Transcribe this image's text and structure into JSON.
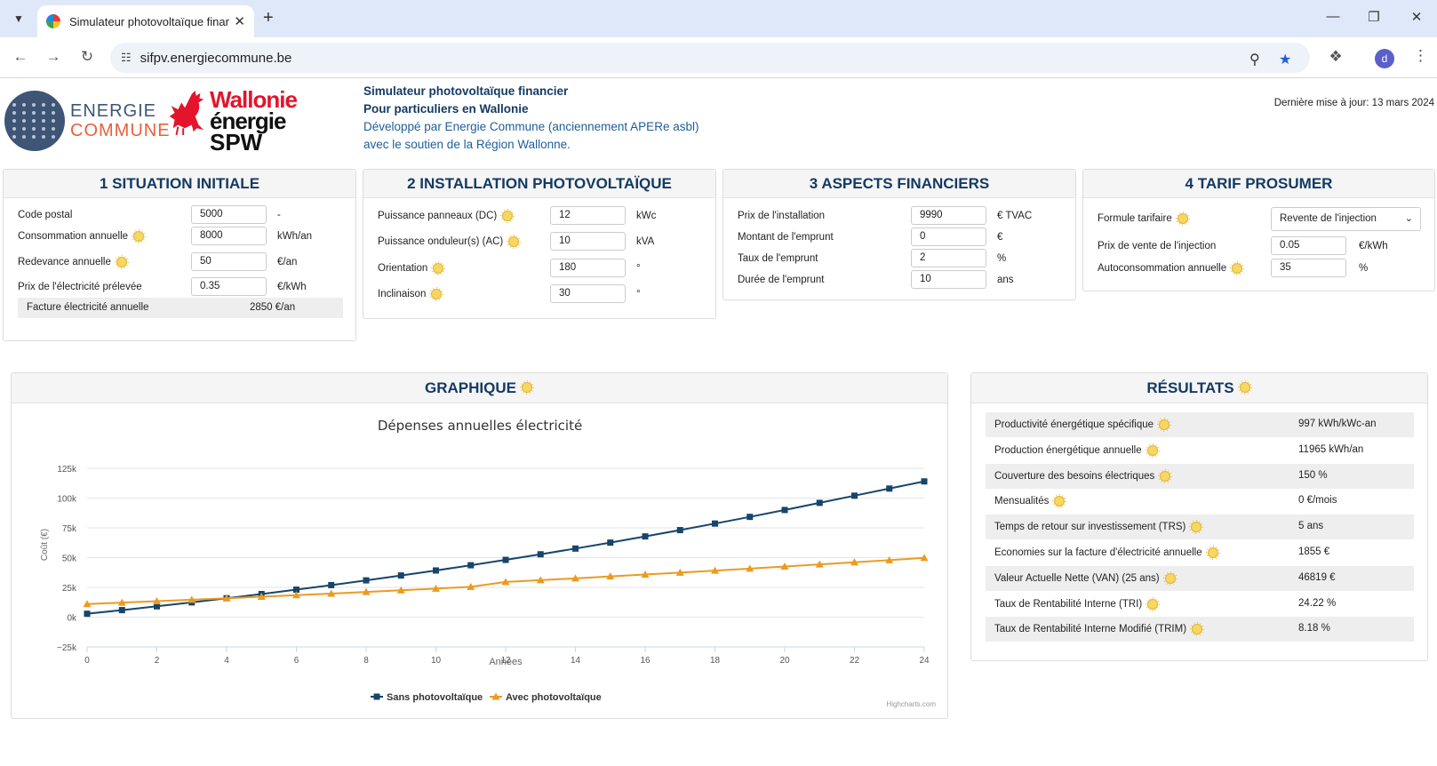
{
  "browser": {
    "tab_title": "Simulateur photovoltaïque financ",
    "url": "sifpv.energiecommune.be",
    "avatar_letter": "d"
  },
  "header": {
    "logo_ec_line1": "ENERGIE",
    "logo_ec_line2": "COMMUNE",
    "logo_wal_line1": "Wallonie",
    "logo_wal_line2": "énergie",
    "logo_wal_line3": "SPW",
    "title": "Simulateur photovoltaïque financier",
    "subtitle": "Pour particuliers en Wallonie",
    "dev_line": "Développé par Energie Commune (anciennement APERe asbl)",
    "support_line": "avec le soutien de la Région Wallonne.",
    "updated": "Dernière mise à jour: 13 mars 2024"
  },
  "situation": {
    "title": "1 SITUATION INITIALE",
    "rows": [
      {
        "label": "Code postal",
        "value": "5000",
        "unit": "-"
      },
      {
        "label": "Consommation annuelle",
        "value": "8000",
        "unit": "kWh/an"
      },
      {
        "label": "Redevance annuelle",
        "value": "50",
        "unit": "€/an"
      },
      {
        "label": "Prix de l'électricité prélevée",
        "value": "0.35",
        "unit": "€/kWh"
      }
    ],
    "facture_label": "Facture électricité annuelle",
    "facture_value": "2850 €/an"
  },
  "installation": {
    "title": "2 INSTALLATION PHOTOVOLTAÏQUE",
    "rows": [
      {
        "label": "Puissance panneaux (DC)",
        "value": "12",
        "unit": "kWc"
      },
      {
        "label": "Puissance onduleur(s) (AC)",
        "value": "10",
        "unit": "kVA"
      },
      {
        "label": "Orientation",
        "value": "180",
        "unit": "°"
      },
      {
        "label": "Inclinaison",
        "value": "30",
        "unit": "°"
      }
    ]
  },
  "financier": {
    "title": "3 ASPECTS FINANCIERS",
    "rows": [
      {
        "label": "Prix de l'installation",
        "value": "9990",
        "unit": "€ TVAC"
      },
      {
        "label": "Montant de l'emprunt",
        "value": "0",
        "unit": "€"
      },
      {
        "label": "Taux de l'emprunt",
        "value": "2",
        "unit": "%"
      },
      {
        "label": "Durée de l'emprunt",
        "value": "10",
        "unit": "ans"
      }
    ]
  },
  "tarif": {
    "title": "4 TARIF PROSUMER",
    "formule_label": "Formule tarifaire",
    "formule_value": "Revente de l'injection",
    "rows": [
      {
        "label": "Prix de vente de l'injection",
        "value": "0.05",
        "unit": "€/kWh"
      },
      {
        "label": "Autoconsommation annuelle",
        "value": "35",
        "unit": "%"
      }
    ]
  },
  "graphique": {
    "title": "GRAPHIQUE",
    "credit": "Highcharts.com"
  },
  "chart_data": {
    "type": "line",
    "title": "Dépenses annuelles électricité",
    "xlabel": "Années",
    "ylabel": "Coût (€)",
    "xlim": [
      0,
      24
    ],
    "ylim": [
      -25000,
      125000
    ],
    "x_ticks": [
      "0",
      "2",
      "4",
      "6",
      "8",
      "10",
      "12",
      "14",
      "16",
      "18",
      "20",
      "22",
      "24"
    ],
    "y_ticks": [
      "−25k",
      "0k",
      "25k",
      "50k",
      "75k",
      "100k",
      "125k"
    ],
    "grid": true,
    "legend_position": "bottom",
    "x": [
      0,
      1,
      2,
      3,
      4,
      5,
      6,
      7,
      8,
      9,
      10,
      11,
      12,
      13,
      14,
      15,
      16,
      17,
      18,
      19,
      20,
      21,
      22,
      23,
      24
    ],
    "series": [
      {
        "name": "Sans photovoltaïque",
        "color": "#17456b",
        "marker": "square",
        "values": [
          2850,
          5900,
          9100,
          12400,
          15900,
          19400,
          23100,
          26900,
          30900,
          35000,
          39200,
          43600,
          48100,
          52800,
          57600,
          62600,
          67800,
          73100,
          78600,
          84200,
          90000,
          96000,
          102000,
          108000,
          114000
        ]
      },
      {
        "name": "Avec photovoltaïque",
        "color": "#eb9a22",
        "marker": "triangle",
        "values": [
          11000,
          12200,
          13400,
          14600,
          15900,
          17200,
          18500,
          19800,
          21200,
          22600,
          24000,
          25500,
          29600,
          31100,
          32600,
          34200,
          35800,
          37400,
          39100,
          40800,
          42500,
          44300,
          46100,
          47900,
          49800
        ]
      }
    ]
  },
  "resultats": {
    "title": "RÉSULTATS",
    "rows": [
      {
        "label": "Productivité énergétique spécifique",
        "value": "997 kWh/kWc-an"
      },
      {
        "label": "Production énergétique annuelle",
        "value": "11965 kWh/an"
      },
      {
        "label": "Couverture des besoins électriques",
        "value": "150 %"
      },
      {
        "label": "Mensualités",
        "value": "0 €/mois"
      },
      {
        "label": "Temps de retour sur investissement (TRS)",
        "value": "5 ans"
      },
      {
        "label": "Economies sur la facture d'électricité annuelle",
        "value": "1855 €"
      },
      {
        "label": "Valeur Actuelle Nette (VAN) (25 ans)",
        "value": "46819 €"
      },
      {
        "label": "Taux de Rentabilité Interne (TRI)",
        "value": "24.22 %"
      },
      {
        "label": "Taux de Rentabilité Interne Modifié (TRIM)",
        "value": "8.18 %"
      }
    ]
  }
}
